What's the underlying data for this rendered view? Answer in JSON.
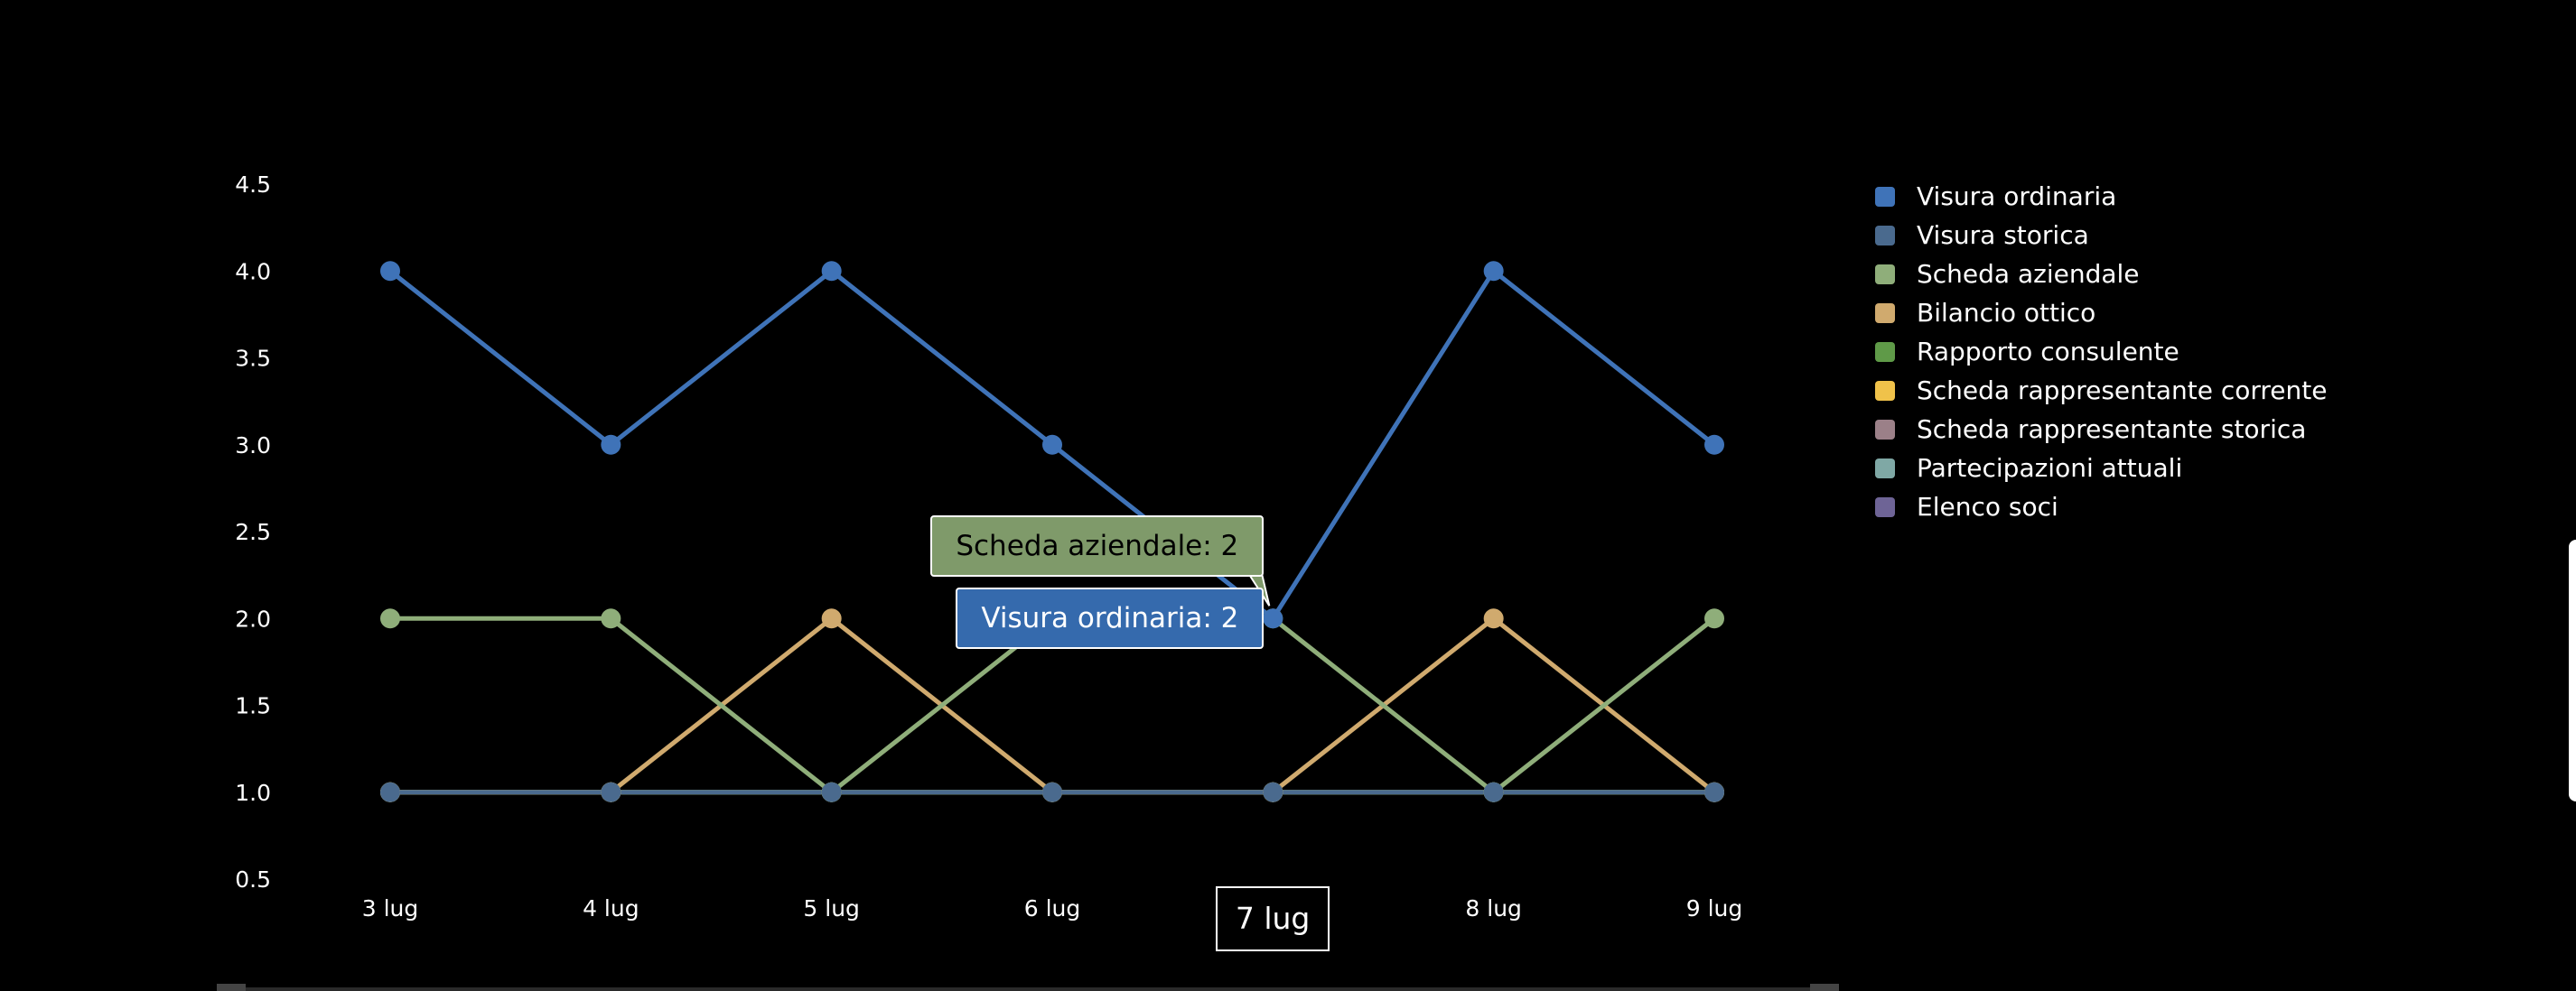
{
  "chart_data": {
    "type": "line",
    "categories": [
      "3 lug",
      "4 lug",
      "5 lug",
      "6 lug",
      "7 lug",
      "8 lug",
      "9 lug"
    ],
    "ylim": [
      0.5,
      4.5
    ],
    "yticks": [
      "4.5",
      "4.0",
      "3.5",
      "3.0",
      "2.5",
      "2.0",
      "1.5",
      "1.0",
      "0.5"
    ],
    "ytick_values": [
      4.5,
      4.0,
      3.5,
      3.0,
      2.5,
      2.0,
      1.5,
      1.0,
      0.5
    ],
    "grid": false,
    "legend_position": "right",
    "series": [
      {
        "name": "Visura ordinaria",
        "color": "#3f73b8",
        "values": [
          4,
          3,
          4,
          3,
          2,
          4,
          3
        ]
      },
      {
        "name": "Visura storica",
        "color": "#4a6a8e",
        "values": [
          1,
          1,
          1,
          1,
          1,
          1,
          1
        ]
      },
      {
        "name": "Scheda aziendale",
        "color": "#8fae7a",
        "values": [
          2,
          2,
          1,
          2,
          2,
          1,
          2
        ]
      },
      {
        "name": "Bilancio ottico",
        "color": "#d0aa6e",
        "values": [
          1,
          1,
          2,
          1,
          1,
          2,
          1
        ]
      },
      {
        "name": "Rapporto consulente",
        "color": "#5f9a48",
        "values": [
          1,
          1,
          1,
          1,
          1,
          1,
          1
        ]
      },
      {
        "name": "Scheda rappresentante corrente",
        "color": "#f0c24a",
        "values": [
          1,
          1,
          1,
          1,
          1,
          1,
          1
        ]
      },
      {
        "name": "Scheda rappresentante storica",
        "color": "#9b8088",
        "values": [
          1,
          1,
          1,
          1,
          1,
          1,
          1
        ]
      },
      {
        "name": "Partecipazioni attuali",
        "color": "#7fa8a5",
        "values": [
          1,
          1,
          1,
          1,
          1,
          1,
          1
        ]
      },
      {
        "name": "Elenco soci",
        "color": "#6e6496",
        "values": [
          1,
          1,
          1,
          1,
          1,
          1,
          1
        ]
      }
    ],
    "highlight": {
      "category": "7 lug",
      "tooltips": [
        {
          "text": "Scheda aziendale: 2",
          "bg": "#7f9a6a",
          "fg": "#000000"
        },
        {
          "text": "Visura ordinaria: 2",
          "bg": "#356aad",
          "fg": "#ffffff"
        }
      ]
    }
  }
}
